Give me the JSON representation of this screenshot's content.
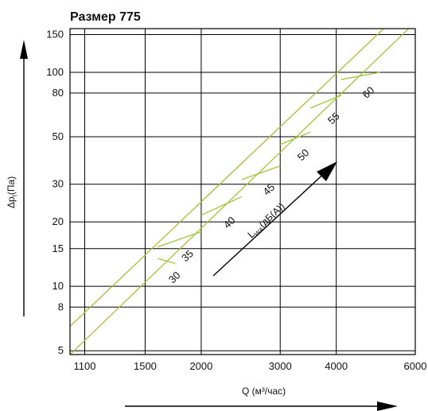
{
  "chart_data": {
    "type": "line",
    "title": "Размер 775",
    "xlabel": "Q (м³/час)",
    "ylabel": "Δpt(Па)",
    "ylabel_main": "Δp",
    "ylabel_sub": "t",
    "ylabel_rest": "(Па)",
    "xscale": "log",
    "yscale": "log",
    "xlim": [
      1020,
      6000
    ],
    "ylim": [
      4.8,
      160
    ],
    "x_ticks": [
      1100,
      1500,
      2000,
      3000,
      4000,
      6000
    ],
    "y_ticks": [
      5,
      8,
      10,
      15,
      20,
      30,
      50,
      80,
      100,
      150
    ],
    "grid": true,
    "bands": [
      {
        "name": "lower",
        "x": [
          1020,
          5800
        ],
        "y": [
          4.8,
          160
        ]
      },
      {
        "name": "upper",
        "x": [
          1020,
          5100
        ],
        "y": [
          6.5,
          160
        ]
      }
    ],
    "noise_lines": [
      {
        "label": "30",
        "x": [
          1600,
          1750
        ],
        "y": [
          13.5,
          12.8
        ]
      },
      {
        "label": "35",
        "x": [
          1600,
          2000
        ],
        "y": [
          15.3,
          18.0
        ]
      },
      {
        "label": "40",
        "x": [
          2000,
          2460
        ],
        "y": [
          21.5,
          26.2
        ]
      },
      {
        "label": "45",
        "x": [
          2460,
          3000
        ],
        "y": [
          31.5,
          36.5
        ]
      },
      {
        "label": "50",
        "x": [
          3000,
          3500
        ],
        "y": [
          46.0,
          52.5
        ]
      },
      {
        "label": "55",
        "x": [
          3500,
          4100
        ],
        "y": [
          68.0,
          78.0
        ]
      },
      {
        "label": "60",
        "x": [
          4100,
          5000
        ],
        "y": [
          92.5,
          100.0
        ]
      }
    ],
    "noise_axis": {
      "label_main": "L",
      "label_sub": "WA",
      "label_rest": "(дБ(A))"
    }
  }
}
